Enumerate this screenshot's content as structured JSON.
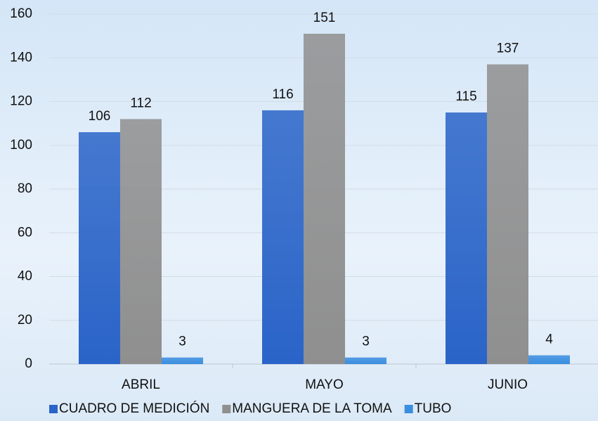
{
  "chart_data": {
    "type": "bar",
    "categories": [
      "ABRIL",
      "MAYO",
      "JUNIO"
    ],
    "series": [
      {
        "name": "CUADRO DE MEDICIÓN",
        "color": "#2a64c8",
        "values": [
          106,
          116,
          115
        ]
      },
      {
        "name": "MANGUERA DE LA TOMA",
        "color": "#8f8f8f",
        "values": [
          112,
          151,
          137
        ]
      },
      {
        "name": "TUBO",
        "color": "#3a8ee0",
        "values": [
          3,
          3,
          4
        ]
      }
    ],
    "ylim": [
      0,
      160
    ],
    "yticks": [
      0,
      20,
      40,
      60,
      80,
      100,
      120,
      140,
      160
    ],
    "grid": true,
    "legend": "bottom"
  }
}
